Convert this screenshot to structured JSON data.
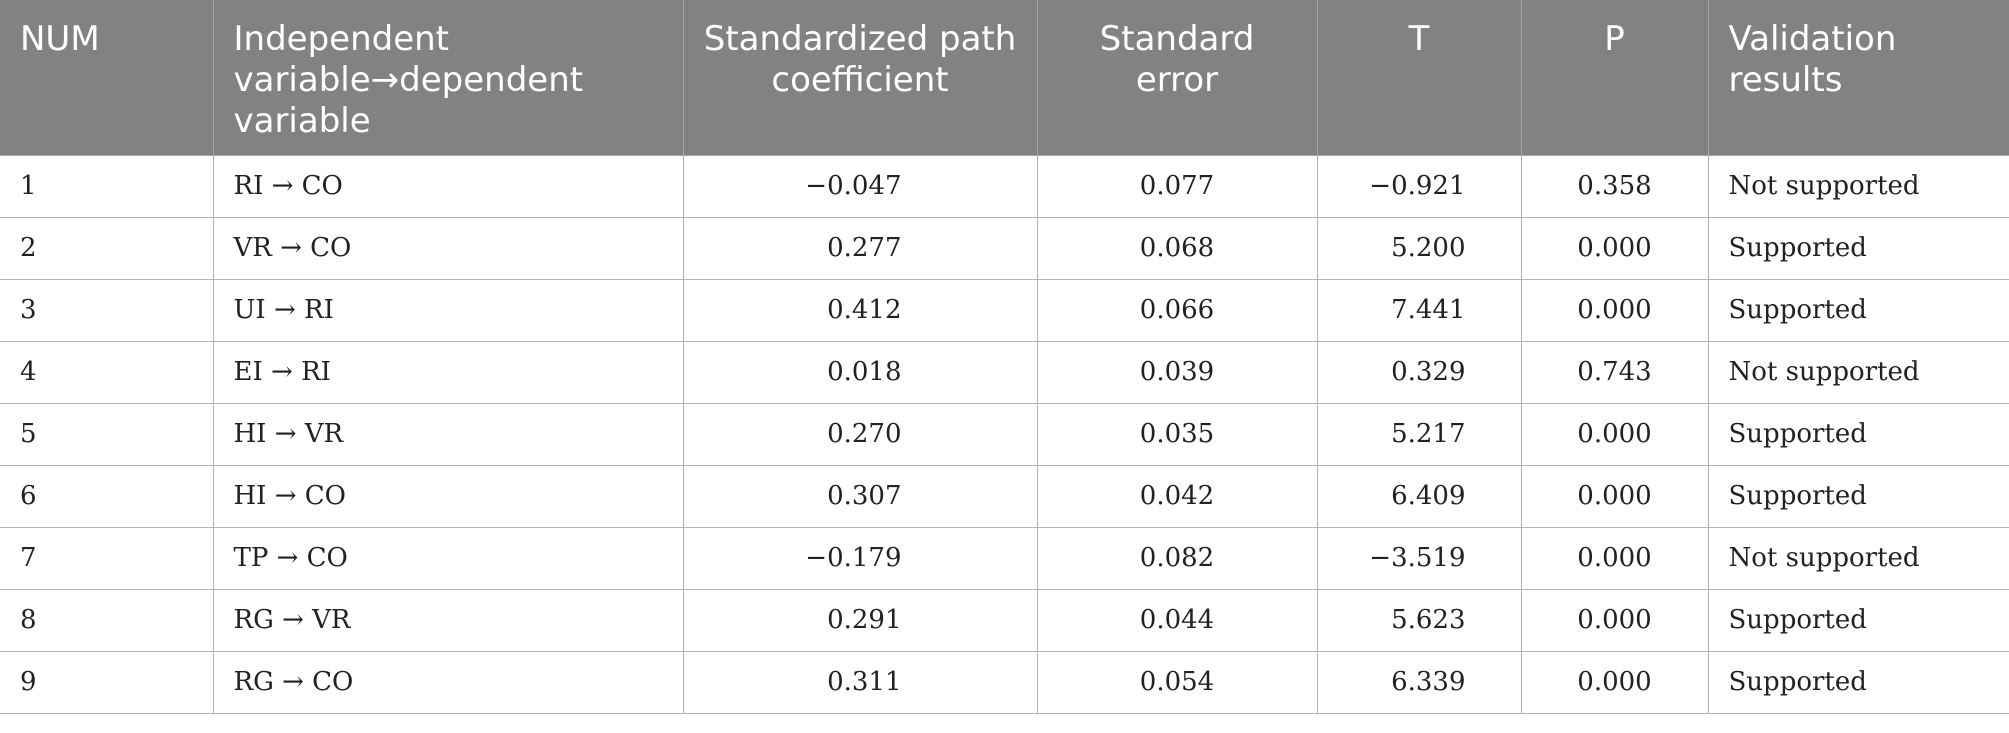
{
  "table": {
    "headers": {
      "num": "NUM",
      "path": "Independent variable→dependent variable",
      "coef": "Standardized path coefficient",
      "se": "Standard error",
      "t": "T",
      "p": "P",
      "result": "Validation results"
    },
    "rows": [
      {
        "num": "1",
        "path": "RI → CO",
        "coef": "−0.047",
        "se": "0.077",
        "t": "−0.921",
        "p": "0.358",
        "result": "Not supported"
      },
      {
        "num": "2",
        "path": "VR → CO",
        "coef": "0.277",
        "se": "0.068",
        "t": "5.200",
        "p": "0.000",
        "result": "Supported"
      },
      {
        "num": "3",
        "path": "UI → RI",
        "coef": "0.412",
        "se": "0.066",
        "t": "7.441",
        "p": "0.000",
        "result": "Supported"
      },
      {
        "num": "4",
        "path": "EI → RI",
        "coef": "0.018",
        "se": "0.039",
        "t": "0.329",
        "p": "0.743",
        "result": "Not supported"
      },
      {
        "num": "5",
        "path": "HI → VR",
        "coef": "0.270",
        "se": "0.035",
        "t": "5.217",
        "p": "0.000",
        "result": "Supported"
      },
      {
        "num": "6",
        "path": "HI → CO",
        "coef": "0.307",
        "se": "0.042",
        "t": "6.409",
        "p": "0.000",
        "result": "Supported"
      },
      {
        "num": "7",
        "path": "TP → CO",
        "coef": "−0.179",
        "se": "0.082",
        "t": "−3.519",
        "p": "0.000",
        "result": "Not supported"
      },
      {
        "num": "8",
        "path": "RG → VR",
        "coef": "0.291",
        "se": "0.044",
        "t": "5.623",
        "p": "0.000",
        "result": "Supported"
      },
      {
        "num": "9",
        "path": "RG → CO",
        "coef": "0.311",
        "se": "0.054",
        "t": "6.339",
        "p": "0.000",
        "result": "Supported"
      }
    ]
  },
  "colors": {
    "header_background": "#818282",
    "header_text": "#ffffff",
    "body_text": "#222222",
    "grid_line": "#b3b3b3"
  }
}
